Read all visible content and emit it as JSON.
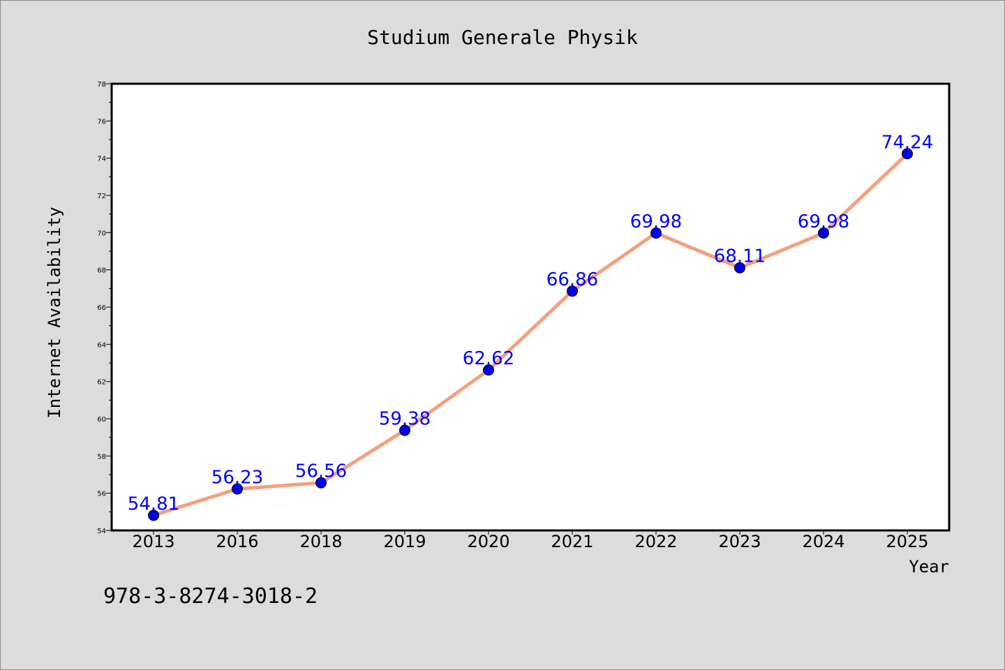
{
  "chart_data": {
    "type": "line",
    "title": "Studium Generale Physik",
    "xlabel": "Year",
    "ylabel": "Internet Availability",
    "categories": [
      "2013",
      "2016",
      "2018",
      "2019",
      "2020",
      "2021",
      "2022",
      "2023",
      "2024",
      "2025"
    ],
    "series": [
      {
        "values": [
          54.81,
          56.23,
          56.56,
          59.38,
          62.62,
          66.86,
          69.98,
          68.11,
          69.98,
          74.24
        ],
        "data_labels": [
          "54.81",
          "56.23",
          "56.56",
          "59.38",
          "62.62",
          "66.86",
          "69.98",
          "68.11",
          "69.98",
          "74.24"
        ],
        "line_color": "#f4a07e",
        "marker_color": "#0000ee"
      }
    ],
    "ylim": [
      54,
      78
    ],
    "yticks": [
      "54",
      "56",
      "58",
      "60",
      "62",
      "64",
      "66",
      "68",
      "70",
      "72",
      "74",
      "76",
      "78"
    ],
    "grid": false,
    "label_color": "#0000ff"
  },
  "footer_text": "978-3-8274-3018-2",
  "colors": {
    "background": "#dcdcdc",
    "plot_area": "#ffffff"
  }
}
